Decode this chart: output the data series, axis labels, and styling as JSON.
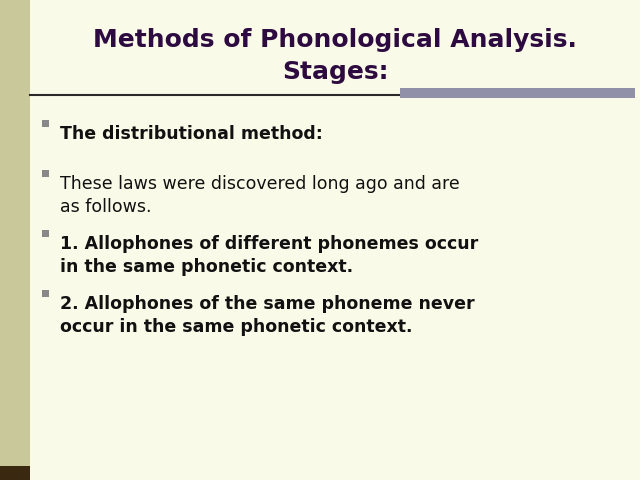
{
  "title_line1": "Methods of Phonological Analysis.",
  "title_line2": "Stages:",
  "title_color": "#2d0a40",
  "background_color": "#fafae8",
  "sidebar_color": "#c8c89a",
  "sidebar_dark_color": "#3a2810",
  "divider_color": "#2a2a2a",
  "accent_bar_color": "#9090a8",
  "bullet_color": "#888888",
  "text_color": "#111111",
  "bullet_items": [
    {
      "text": "The distributional method:",
      "bold": true
    },
    {
      "text": "These laws were discovered long ago and are\nas follows.",
      "bold": false
    },
    {
      "text": "1. Allophones of different phonemes occur\nin the same phonetic context.",
      "bold": true
    },
    {
      "text": "2. Allophones of the same phoneme never\noccur in the same phonetic context.",
      "bold": true
    }
  ],
  "title_fontsize": 18,
  "body_fontsize": 12.5
}
